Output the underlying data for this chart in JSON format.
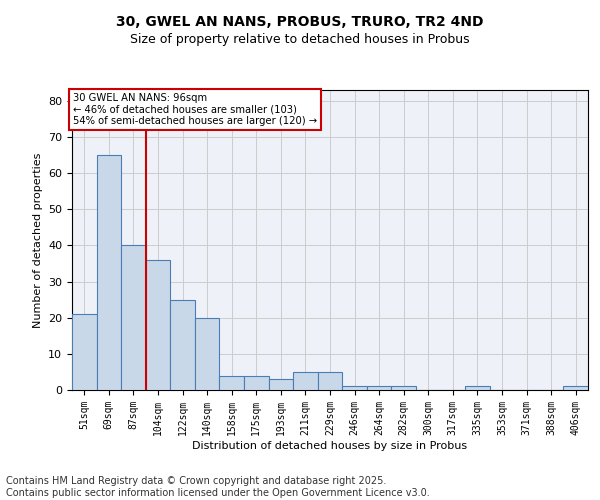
{
  "title": "30, GWEL AN NANS, PROBUS, TRURO, TR2 4ND",
  "subtitle": "Size of property relative to detached houses in Probus",
  "xlabel": "Distribution of detached houses by size in Probus",
  "ylabel": "Number of detached properties",
  "categories": [
    "51sqm",
    "69sqm",
    "87sqm",
    "104sqm",
    "122sqm",
    "140sqm",
    "158sqm",
    "175sqm",
    "193sqm",
    "211sqm",
    "229sqm",
    "246sqm",
    "264sqm",
    "282sqm",
    "300sqm",
    "317sqm",
    "335sqm",
    "353sqm",
    "371sqm",
    "388sqm",
    "406sqm"
  ],
  "values": [
    21,
    65,
    40,
    36,
    25,
    20,
    4,
    4,
    3,
    5,
    5,
    1,
    1,
    1,
    0,
    0,
    1,
    0,
    0,
    0,
    1
  ],
  "bar_color": "#c8d8e8",
  "bar_edge_color": "#4a7db5",
  "red_line_x": 2.5,
  "annotation_text": "30 GWEL AN NANS: 96sqm\n← 46% of detached houses are smaller (103)\n54% of semi-detached houses are larger (120) →",
  "annotation_box_color": "#ffffff",
  "annotation_box_edge": "#cc0000",
  "ylim": [
    0,
    83
  ],
  "yticks": [
    0,
    10,
    20,
    30,
    40,
    50,
    60,
    70,
    80
  ],
  "grid_color": "#cccccc",
  "background_color": "#eef2f8",
  "footer_line1": "Contains HM Land Registry data © Crown copyright and database right 2025.",
  "footer_line2": "Contains public sector information licensed under the Open Government Licence v3.0.",
  "title_fontsize": 10,
  "subtitle_fontsize": 9,
  "footer_fontsize": 7,
  "tick_fontsize": 7,
  "ylabel_fontsize": 8,
  "xlabel_fontsize": 8
}
